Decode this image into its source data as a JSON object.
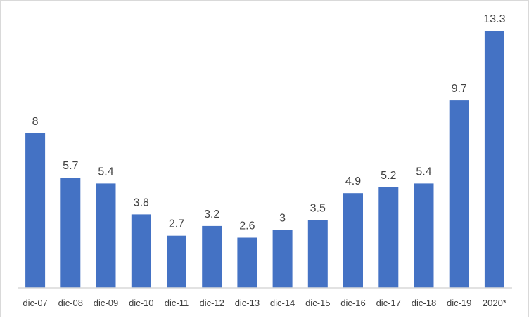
{
  "chart_data": {
    "type": "bar",
    "title": "",
    "xlabel": "",
    "ylabel": "",
    "categories": [
      "dic-07",
      "dic-08",
      "dic-09",
      "dic-10",
      "dic-11",
      "dic-12",
      "dic-13",
      "dic-14",
      "dic-15",
      "dic-16",
      "dic-17",
      "dic-18",
      "dic-19",
      "2020*"
    ],
    "values": [
      8,
      5.7,
      5.4,
      3.8,
      2.7,
      3.2,
      2.6,
      3,
      3.5,
      4.9,
      5.2,
      5.4,
      9.7,
      13.3
    ],
    "value_labels": [
      "8",
      "5.7",
      "5.4",
      "3.8",
      "2.7",
      "3.2",
      "2.6",
      "3",
      "3.5",
      "4.9",
      "5.2",
      "5.4",
      "9.7",
      "13.3"
    ],
    "ylim": [
      0,
      13.3
    ],
    "grid": false,
    "legend": "none",
    "colors": {
      "bar": "#4472c4",
      "axis": "#d9d9d9",
      "text": "#404040"
    }
  }
}
